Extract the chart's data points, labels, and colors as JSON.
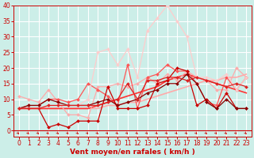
{
  "xlabel": "Vent moyen/en rafales ( km/h )",
  "xlim": [
    -0.5,
    23.5
  ],
  "ylim": [
    -2,
    40
  ],
  "yticks": [
    0,
    5,
    10,
    15,
    20,
    25,
    30,
    35,
    40
  ],
  "xticks": [
    0,
    1,
    2,
    3,
    4,
    5,
    6,
    7,
    8,
    9,
    10,
    11,
    12,
    13,
    14,
    15,
    16,
    17,
    18,
    19,
    20,
    21,
    22,
    23
  ],
  "background_color": "#cceee8",
  "grid_color": "#ffffff",
  "series": [
    {
      "x": [
        0,
        1,
        2,
        3,
        4,
        5,
        6,
        7,
        8,
        9,
        10,
        11,
        12,
        13,
        14,
        15,
        16,
        17,
        18,
        19,
        20,
        21,
        22,
        23
      ],
      "y": [
        11,
        10,
        9,
        13,
        9,
        5,
        5,
        4,
        14,
        14,
        15,
        14,
        15,
        17,
        15,
        18,
        16,
        19,
        17,
        16,
        13,
        13,
        20,
        17
      ],
      "color": "#ffaaaa",
      "marker": "D",
      "markersize": 2.0,
      "linewidth": 0.9
    },
    {
      "x": [
        0,
        1,
        2,
        3,
        4,
        5,
        6,
        7,
        8,
        9,
        10,
        11,
        12,
        13,
        14,
        15,
        16,
        17,
        18,
        19,
        20,
        21,
        22,
        23
      ],
      "y": [
        7,
        8,
        8,
        10,
        10,
        9,
        10,
        15,
        13,
        11,
        8,
        21,
        7,
        17,
        18,
        21,
        19,
        19,
        15,
        9,
        8,
        17,
        13,
        17
      ],
      "color": "#ff5555",
      "marker": "D",
      "markersize": 2.0,
      "linewidth": 0.9
    },
    {
      "x": [
        0,
        1,
        2,
        3,
        4,
        5,
        6,
        7,
        8,
        9,
        10,
        11,
        12,
        13,
        14,
        15,
        16,
        17,
        18,
        19,
        20,
        21,
        22,
        23
      ],
      "y": [
        7,
        7,
        7,
        1,
        2,
        1,
        3,
        3,
        3,
        14,
        7,
        7,
        7,
        8,
        15,
        16,
        20,
        19,
        8,
        10,
        7,
        12,
        7,
        7
      ],
      "color": "#cc0000",
      "marker": "D",
      "markersize": 2.0,
      "linewidth": 0.9
    },
    {
      "x": [
        0,
        1,
        2,
        3,
        4,
        5,
        6,
        7,
        8,
        9,
        10,
        11,
        12,
        13,
        14,
        15,
        16,
        17,
        18,
        19,
        20,
        21,
        22,
        23
      ],
      "y": [
        7,
        8,
        8,
        10,
        9,
        8,
        8,
        8,
        9,
        10,
        8,
        9,
        10,
        12,
        13,
        15,
        15,
        18,
        15,
        9,
        7,
        10,
        7,
        7
      ],
      "color": "#880000",
      "marker": "D",
      "markersize": 2.0,
      "linewidth": 0.9
    },
    {
      "x": [
        0,
        1,
        2,
        3,
        4,
        5,
        6,
        7,
        8,
        9,
        10,
        11,
        12,
        13,
        14,
        15,
        16,
        17,
        18,
        19,
        20,
        21,
        22,
        23
      ],
      "y": [
        7,
        7,
        7,
        7,
        7,
        7,
        7,
        7,
        7,
        8,
        8,
        9,
        9,
        10,
        11,
        12,
        13,
        14,
        15,
        16,
        16,
        17,
        17,
        18
      ],
      "color": "#ffaaaa",
      "marker": null,
      "markersize": 0,
      "linewidth": 1.2
    },
    {
      "x": [
        0,
        1,
        2,
        3,
        4,
        5,
        6,
        7,
        8,
        9,
        10,
        11,
        12,
        13,
        14,
        15,
        16,
        17,
        18,
        19,
        20,
        21,
        22,
        23
      ],
      "y": [
        7,
        7,
        7,
        7,
        7,
        7,
        7,
        7,
        8,
        9,
        10,
        11,
        12,
        13,
        14,
        16,
        17,
        18,
        17,
        16,
        15,
        14,
        13,
        12
      ],
      "color": "#ff3333",
      "marker": null,
      "markersize": 0,
      "linewidth": 1.2
    },
    {
      "x": [
        0,
        1,
        2,
        3,
        4,
        5,
        6,
        7,
        8,
        9,
        10,
        11,
        12,
        13,
        14,
        15,
        16,
        17,
        18,
        19,
        20,
        21,
        22,
        23
      ],
      "y": [
        7,
        7,
        7,
        8,
        8,
        8,
        8,
        10,
        25,
        26,
        21,
        26,
        17,
        32,
        36,
        40,
        35,
        30,
        17,
        17,
        16,
        18,
        13,
        17
      ],
      "color": "#ffcccc",
      "marker": "D",
      "markersize": 2.0,
      "linewidth": 0.9
    },
    {
      "x": [
        0,
        1,
        2,
        3,
        4,
        5,
        6,
        7,
        8,
        9,
        10,
        11,
        12,
        13,
        14,
        15,
        16,
        17,
        18,
        19,
        20,
        21,
        22,
        23
      ],
      "y": [
        7,
        7,
        7,
        8,
        8,
        8,
        8,
        8,
        8,
        9,
        10,
        15,
        10,
        16,
        16,
        17,
        17,
        16,
        17,
        16,
        15,
        14,
        15,
        14
      ],
      "color": "#dd2222",
      "marker": "D",
      "markersize": 2.0,
      "linewidth": 0.9
    }
  ],
  "arrow_color": "#cc0000",
  "tick_fontsize": 5.5,
  "xlabel_fontsize": 6.5
}
